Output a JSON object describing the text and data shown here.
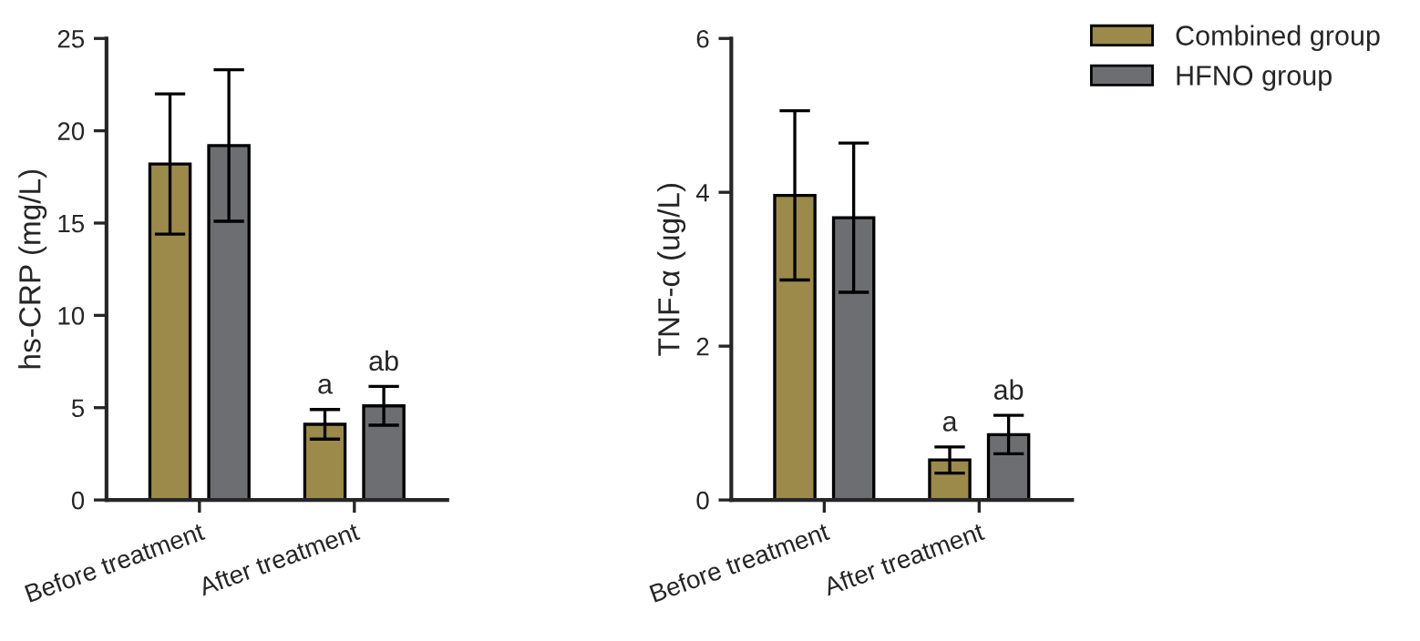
{
  "chart_data": [
    {
      "type": "bar",
      "ylabel": "hs-CRP (mg/L)",
      "categories": [
        "Before treatment",
        "After treatment"
      ],
      "ylim": [
        0,
        25
      ],
      "yticks": [
        0,
        5,
        10,
        15,
        20,
        25
      ],
      "grid": false,
      "legend": "top right",
      "series": [
        {
          "name": "Combined group",
          "color": "#9c8a4a",
          "values": [
            18.2,
            4.1
          ],
          "errors": [
            3.8,
            0.8
          ]
        },
        {
          "name": "HFNO group",
          "color": "#6d6e71",
          "values": [
            19.2,
            5.1
          ],
          "errors": [
            4.1,
            1.05
          ]
        }
      ],
      "annotations": [
        "a",
        "ab"
      ]
    },
    {
      "type": "bar",
      "ylabel": "TNF-α (ug/L)",
      "categories": [
        "Before treatment",
        "After treatment"
      ],
      "ylim": [
        0,
        6
      ],
      "yticks": [
        0,
        2,
        4,
        6
      ],
      "grid": false,
      "series": [
        {
          "color": "#9c8a4a",
          "values": [
            3.96,
            0.52
          ],
          "errors": [
            1.1,
            0.17
          ]
        },
        {
          "color": "#6d6e71",
          "values": [
            3.67,
            0.85
          ],
          "errors": [
            0.97,
            0.25
          ]
        }
      ],
      "annotations": [
        "a",
        "ab"
      ]
    }
  ]
}
